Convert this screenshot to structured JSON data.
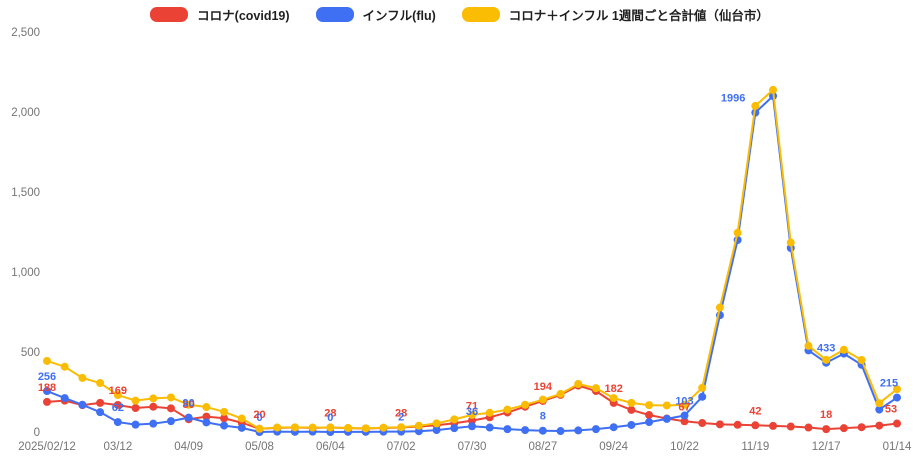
{
  "chart_data": {
    "type": "line",
    "title": "",
    "n_points": 49,
    "x_tick_indices": [
      0,
      4,
      8,
      12,
      16,
      20,
      24,
      28,
      32,
      36,
      40,
      44,
      48
    ],
    "x_tick_labels": [
      "2025/02/12",
      "03/12",
      "04/09",
      "05/08",
      "06/04",
      "07/02",
      "07/30",
      "08/27",
      "09/24",
      "10/22",
      "11/19",
      "12/17",
      "01/14"
    ],
    "y_ticks": [
      {
        "value": 0,
        "label": "0"
      },
      {
        "value": 500,
        "label": "500"
      },
      {
        "value": 1000,
        "label": "1,000"
      },
      {
        "value": 1500,
        "label": "1,500"
      },
      {
        "value": 2000,
        "label": "2,000"
      },
      {
        "value": 2500,
        "label": "2,500"
      }
    ],
    "ylim": [
      0,
      2500
    ],
    "grid": false,
    "legend_position": "top-center",
    "series": [
      {
        "name": "コロナ(covid19)",
        "color": "#ea4335",
        "values": [
          188,
          196,
          168,
          182,
          169,
          150,
          158,
          148,
          80,
          96,
          86,
          58,
          20,
          26,
          28,
          26,
          28,
          24,
          22,
          25,
          28,
          34,
          42,
          55,
          71,
          92,
          122,
          158,
          194,
          232,
          290,
          256,
          182,
          138,
          106,
          84,
          67,
          56,
          48,
          45,
          42,
          38,
          34,
          28,
          18,
          24,
          30,
          40,
          53
        ]
      },
      {
        "name": "インフル(flu)",
        "color": "#3f6ff2",
        "values": [
          256,
          212,
          170,
          124,
          62,
          46,
          52,
          68,
          90,
          60,
          40,
          26,
          0,
          2,
          1,
          2,
          0,
          1,
          1,
          2,
          2,
          5,
          12,
          24,
          36,
          28,
          18,
          12,
          8,
          6,
          10,
          18,
          30,
          44,
          62,
          82,
          103,
          220,
          730,
          1200,
          1996,
          2100,
          1150,
          510,
          433,
          490,
          420,
          140,
          215
        ]
      },
      {
        "name": "コロナ＋インフル 1週間ごと合計値（仙台市）",
        "color": "#fbbc04",
        "values": [
          444,
          408,
          338,
          306,
          231,
          196,
          210,
          216,
          170,
          156,
          126,
          84,
          20,
          28,
          29,
          28,
          28,
          25,
          23,
          27,
          30,
          39,
          54,
          79,
          107,
          120,
          140,
          170,
          202,
          238,
          300,
          274,
          212,
          182,
          168,
          166,
          170,
          276,
          778,
          1245,
          2038,
          2138,
          1184,
          538,
          451,
          514,
          450,
          180,
          268
        ]
      }
    ],
    "point_labels": [
      {
        "series": 1,
        "index": 0,
        "text": "256"
      },
      {
        "series": 0,
        "index": 0,
        "text": "188"
      },
      {
        "series": 0,
        "index": 4,
        "text": "169"
      },
      {
        "series": 1,
        "index": 4,
        "text": "62"
      },
      {
        "series": 0,
        "index": 8,
        "text": "80"
      },
      {
        "series": 1,
        "index": 8,
        "text": "90"
      },
      {
        "series": 0,
        "index": 12,
        "text": "20"
      },
      {
        "series": 1,
        "index": 12,
        "text": "0"
      },
      {
        "series": 0,
        "index": 16,
        "text": "28"
      },
      {
        "series": 1,
        "index": 16,
        "text": "0"
      },
      {
        "series": 0,
        "index": 20,
        "text": "28"
      },
      {
        "series": 1,
        "index": 20,
        "text": "2"
      },
      {
        "series": 0,
        "index": 24,
        "text": "71"
      },
      {
        "series": 1,
        "index": 24,
        "text": "36"
      },
      {
        "series": 0,
        "index": 28,
        "text": "194"
      },
      {
        "series": 1,
        "index": 28,
        "text": "8"
      },
      {
        "series": 0,
        "index": 32,
        "text": "182"
      },
      {
        "series": 1,
        "index": 36,
        "text": "103"
      },
      {
        "series": 0,
        "index": 36,
        "text": "67"
      },
      {
        "series": 1,
        "index": 40,
        "text": "1996",
        "dx": -10,
        "anchor": "end"
      },
      {
        "series": 0,
        "index": 40,
        "text": "42"
      },
      {
        "series": 1,
        "index": 44,
        "text": "433"
      },
      {
        "series": 0,
        "index": 44,
        "text": "18"
      },
      {
        "series": 1,
        "index": 48,
        "text": "215",
        "dx": -8
      },
      {
        "series": 0,
        "index": 48,
        "text": "53",
        "dx": -6
      }
    ]
  }
}
